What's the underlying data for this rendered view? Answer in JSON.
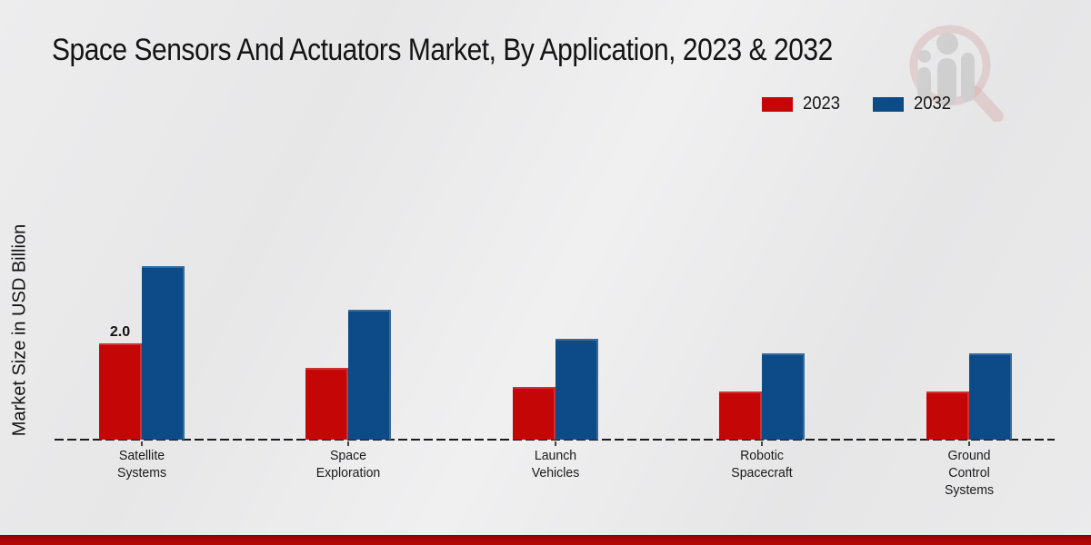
{
  "title": "Space Sensors And Actuators Market, By Application, 2023 & 2032",
  "ylabel": "Market Size in USD Billion",
  "legend": [
    {
      "label": "2023",
      "color": "#c40606"
    },
    {
      "label": "2032",
      "color": "#0c4b87"
    }
  ],
  "colors": {
    "series_2023": "#c40606",
    "series_2032": "#0c4b87",
    "footer_red": "#b00505",
    "background_gray": "#e9e9ea",
    "baseline": "#1b1b1b"
  },
  "watermark": {
    "name": "magnifier-bars-logo"
  },
  "chart_data": {
    "type": "bar",
    "title": "Space Sensors And Actuators Market, By Application, 2023 & 2032",
    "xlabel": "",
    "ylabel": "Market Size in USD Billion",
    "categories": [
      "Satellite Systems",
      "Space Exploration",
      "Launch Vehicles",
      "Robotic Spacecraft",
      "Ground Control Systems"
    ],
    "category_lines": [
      [
        "Satellite",
        "Systems"
      ],
      [
        "Space",
        "Exploration"
      ],
      [
        "Launch",
        "Vehicles"
      ],
      [
        "Robotic",
        "Spacecraft"
      ],
      [
        "Ground",
        "Control",
        "Systems"
      ]
    ],
    "series": [
      {
        "name": "2023",
        "color": "#c40606",
        "values": [
          2.0,
          1.5,
          1.1,
          1.0,
          1.0
        ]
      },
      {
        "name": "2032",
        "color": "#0c4b87",
        "values": [
          3.6,
          2.7,
          2.1,
          1.8,
          1.8
        ]
      }
    ],
    "value_labels": [
      {
        "series": 0,
        "category": 0,
        "text": "2.0"
      }
    ],
    "ylim": [
      0,
      4
    ],
    "grid": false,
    "axis_style": "dashed-baseline-only",
    "legend_position": "top-right"
  }
}
